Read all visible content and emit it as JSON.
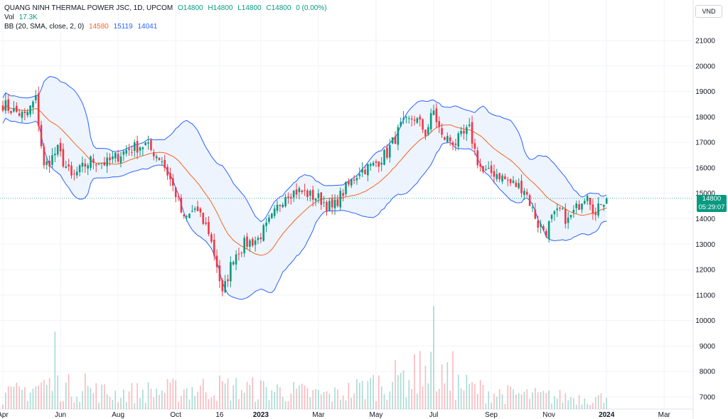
{
  "legend": {
    "symbol_title": "QUANG NINH THERMAL POWER JSC, 1D, UPCOM",
    "ohlc": {
      "open": "O14800",
      "high": "H14800",
      "low": "L14800",
      "close": "C14800",
      "change": "0 (0.00%)"
    },
    "volume": {
      "label": "Vol",
      "value": "17.3K"
    },
    "bb": {
      "label": "BB (20, SMA, close, 2, 0)",
      "basis": "14580",
      "upper": "15119",
      "lower": "14041"
    }
  },
  "currency_button": "VND",
  "last_price": {
    "price": "14800",
    "countdown": "05:29:07"
  },
  "colors": {
    "up": "#089981",
    "down": "#f23645",
    "basis": "#f26522",
    "band": "#2962ff",
    "band_fill": "#eef4fd",
    "grid": "#f0f3fa",
    "text": "#131722"
  },
  "chart_data": {
    "type": "candlestick",
    "title": "QUANG NINH THERMAL POWER JSC, 1D, UPCOM",
    "ylim": [
      6500,
      22000
    ],
    "price_ticks": [
      21000,
      20000,
      19000,
      18000,
      17000,
      16000,
      15000,
      14000,
      13000,
      12000,
      11000,
      10000,
      9000,
      8000,
      7000
    ],
    "time_labels": [
      "Apr",
      "Jun",
      "Aug",
      "Oct",
      "16",
      "2023",
      "Mar",
      "May",
      "Jul",
      "Sep",
      "Nov",
      "2024",
      "Mar"
    ],
    "time_label_index": [
      0,
      21,
      42,
      63,
      79,
      94,
      115,
      136,
      157,
      178,
      199,
      220,
      241
    ],
    "bar_count": 221,
    "close_anchor_index": [
      0,
      8,
      12,
      15,
      20,
      25,
      32,
      38,
      45,
      52,
      58,
      63,
      66,
      70,
      75,
      78,
      80,
      84,
      88,
      93,
      98,
      103,
      108,
      115,
      120,
      125,
      130,
      135,
      140,
      145,
      150,
      154,
      157,
      160,
      165,
      170,
      173,
      175,
      180,
      185,
      190,
      195,
      198,
      200,
      203,
      206,
      210,
      213,
      216,
      218,
      220
    ],
    "close_anchor_value": [
      18500,
      18000,
      18700,
      16000,
      16700,
      15600,
      16300,
      16200,
      16700,
      16900,
      16300,
      15000,
      13900,
      14400,
      13500,
      12200,
      11000,
      12500,
      13000,
      13200,
      14000,
      15000,
      15100,
      14800,
      14400,
      15200,
      15900,
      16100,
      16600,
      17600,
      18000,
      17400,
      18200,
      17200,
      17000,
      17500,
      16300,
      15800,
      15800,
      15400,
      15200,
      13800,
      13500,
      14000,
      14300,
      13900,
      14600,
      15100,
      14100,
      14700,
      14800
    ],
    "volume_anchor_index": [
      0,
      15,
      40,
      60,
      78,
      100,
      120,
      140,
      155,
      165,
      180,
      200,
      220
    ],
    "volume_anchor_value": [
      20000,
      40000,
      25000,
      30000,
      35000,
      30000,
      22000,
      45000,
      60000,
      40000,
      25000,
      20000,
      17300
    ],
    "volume_spikes": [
      [
        19,
        120000
      ],
      [
        152,
        90000
      ],
      [
        157,
        160000
      ],
      [
        164,
        90000
      ],
      [
        30,
        55000
      ],
      [
        134,
        48000
      ],
      [
        146,
        60000
      ]
    ],
    "bb": {
      "period": 20,
      "mult": 2
    }
  }
}
